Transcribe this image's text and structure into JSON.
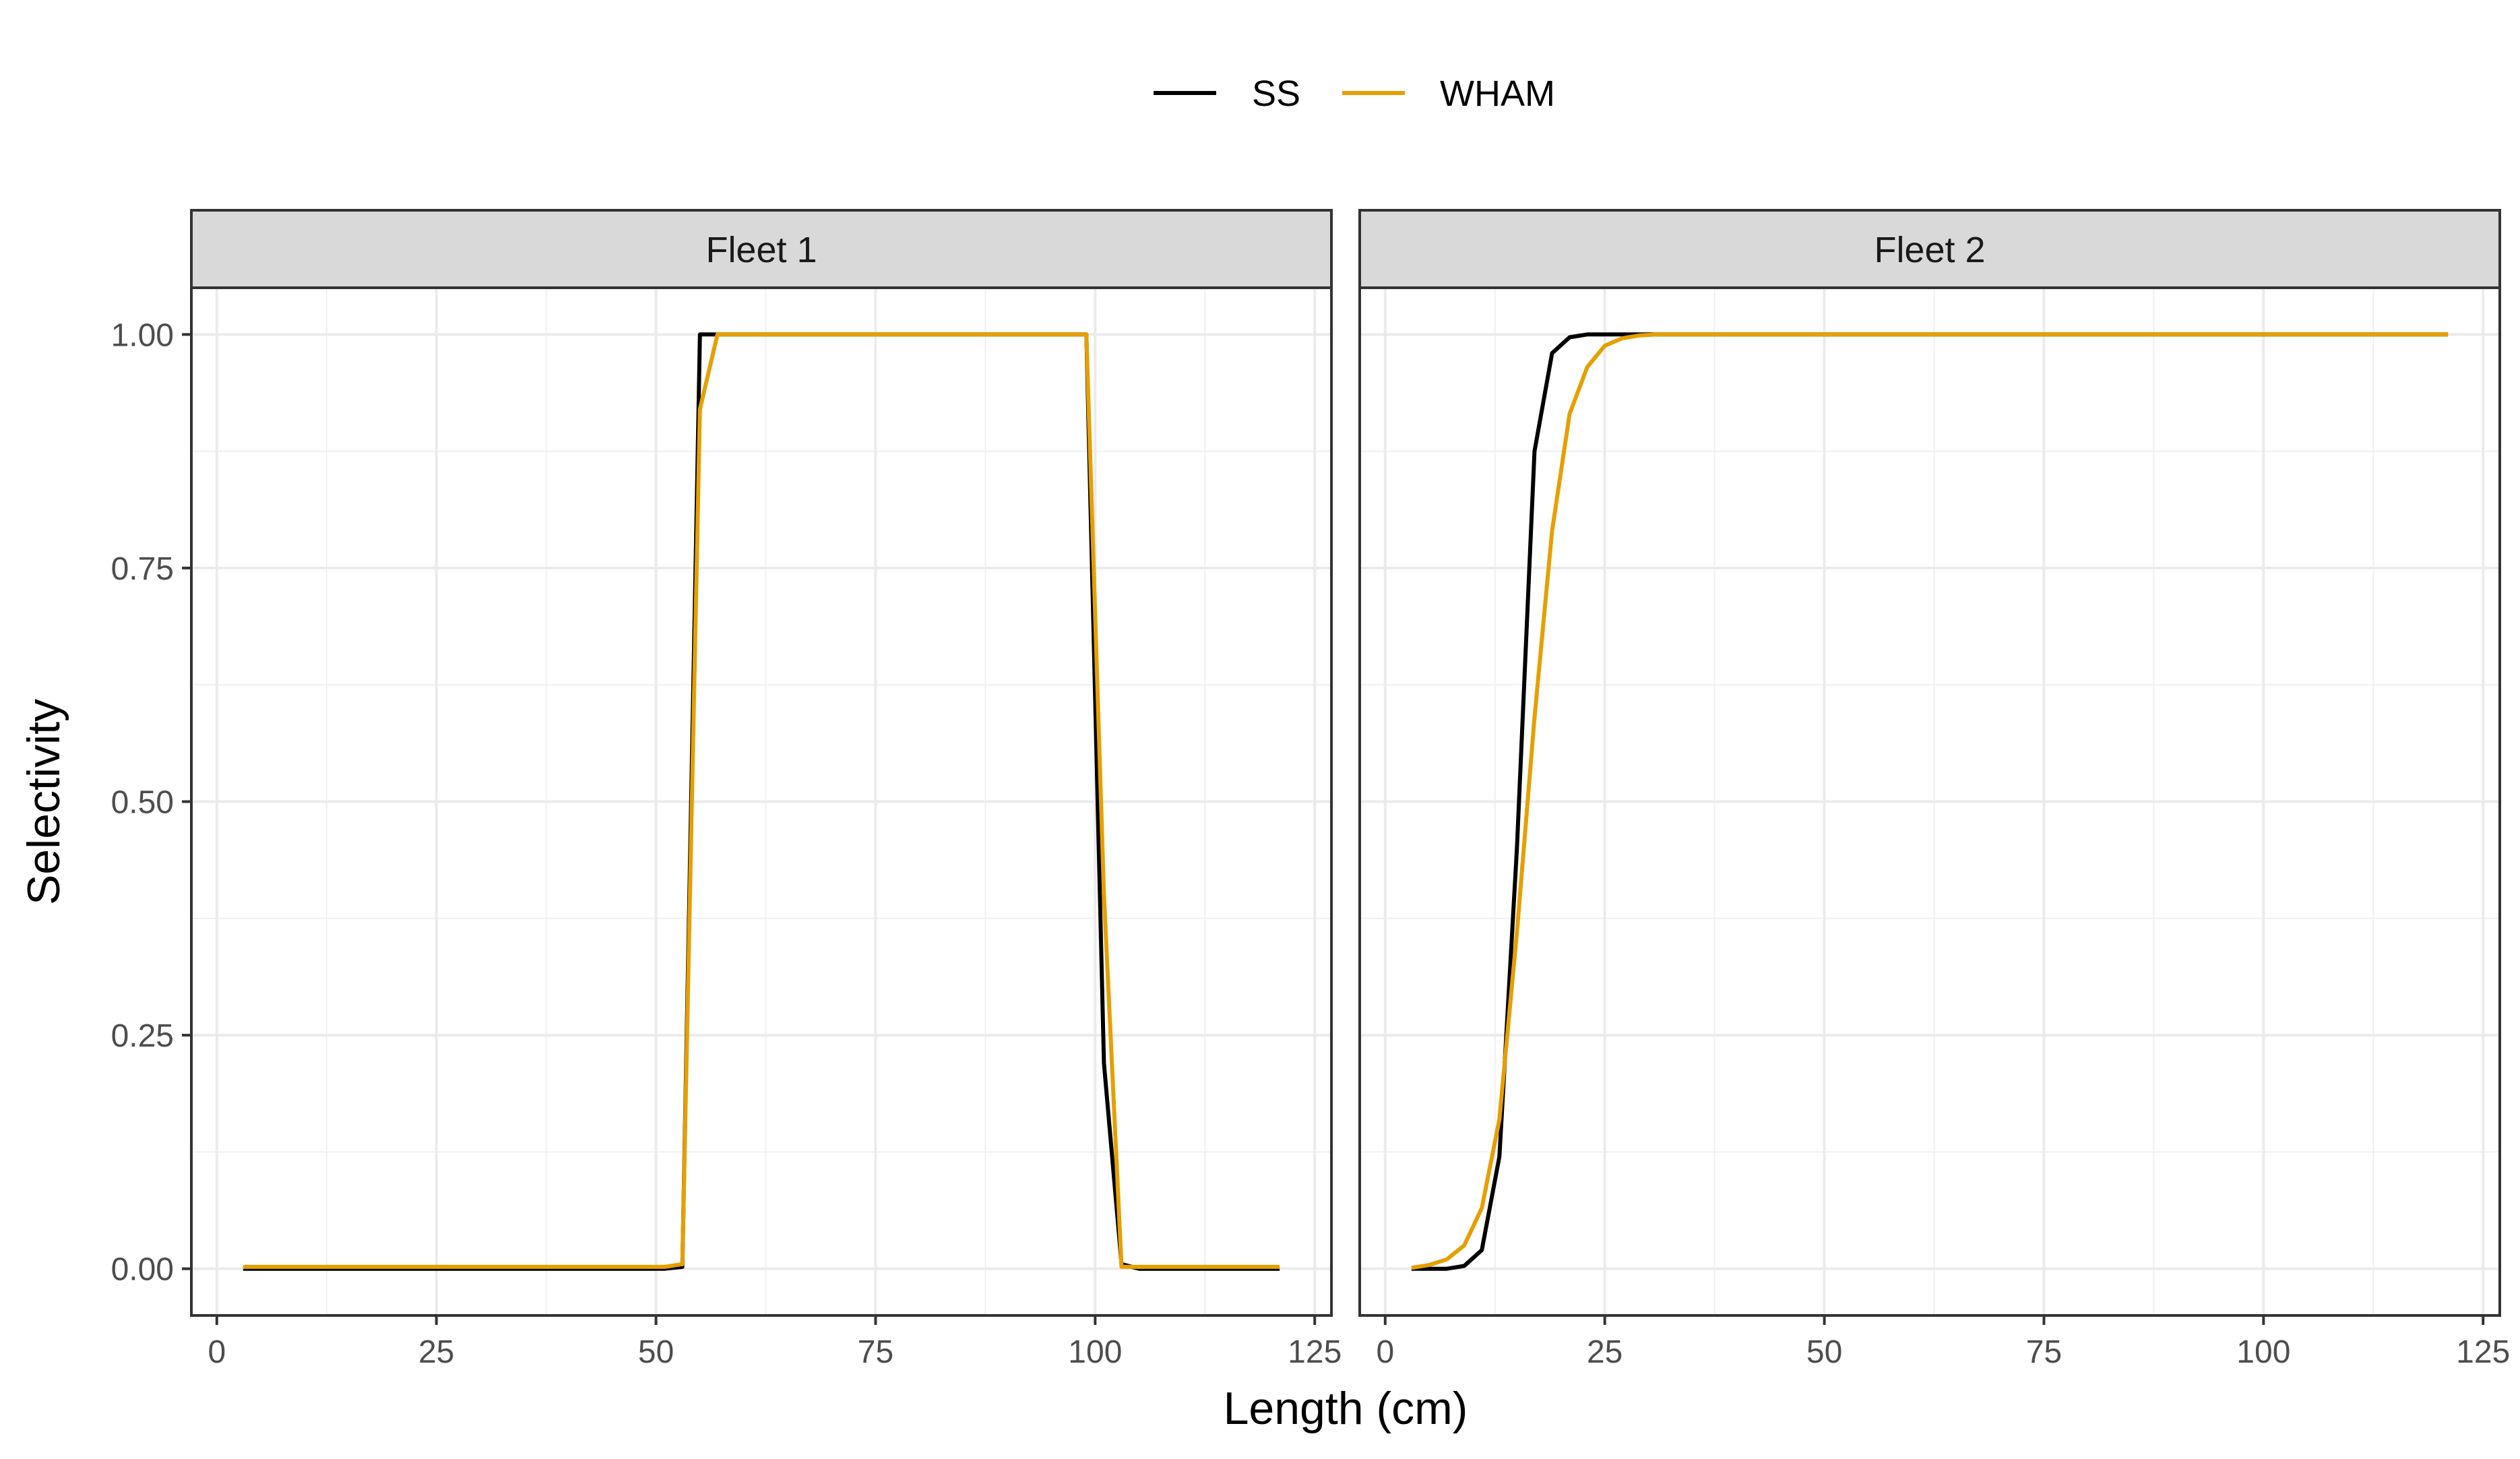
{
  "chart_data": {
    "type": "line",
    "xlabel": "Length (cm)",
    "ylabel": "Selectivity",
    "xlim": [
      -2.9,
      126.9
    ],
    "ylim": [
      -0.05,
      1.05
    ],
    "x_ticks": [
      0,
      25,
      50,
      75,
      100,
      125
    ],
    "y_ticks": [
      0.0,
      0.25,
      0.5,
      0.75,
      1.0
    ],
    "y_tick_labels": [
      "0.00",
      "0.25",
      "0.50",
      "0.75",
      "1.00"
    ],
    "x_tick_labels": [
      "0",
      "25",
      "50",
      "75",
      "100",
      "125"
    ],
    "grid": true,
    "legend_position": "top",
    "legend": [
      {
        "name": "SS",
        "color": "#000000"
      },
      {
        "name": "WHAM",
        "color": "#E69F00"
      }
    ],
    "panels": [
      {
        "title": "Fleet 1",
        "series": [
          {
            "name": "SS",
            "color": "#000000",
            "points": [
              [
                3,
                0
              ],
              [
                51,
                0
              ],
              [
                53,
                0.002
              ],
              [
                55,
                1.0
              ],
              [
                99,
                1.0
              ],
              [
                101,
                0.22
              ],
              [
                103,
                0.005
              ],
              [
                105,
                0
              ],
              [
                121,
                0
              ]
            ]
          },
          {
            "name": "WHAM",
            "color": "#E69F00",
            "points": [
              [
                3,
                0.002
              ],
              [
                51,
                0.002
              ],
              [
                53,
                0.005
              ],
              [
                55,
                0.92
              ],
              [
                57,
                1.0
              ],
              [
                99,
                1.0
              ],
              [
                101,
                0.4
              ],
              [
                103,
                0.002
              ],
              [
                105,
                0.002
              ],
              [
                121,
                0.002
              ]
            ]
          }
        ]
      },
      {
        "title": "Fleet 2",
        "series": [
          {
            "name": "SS",
            "color": "#000000",
            "points": [
              [
                3,
                0
              ],
              [
                7,
                0
              ],
              [
                9,
                0.003
              ],
              [
                11,
                0.02
              ],
              [
                13,
                0.12
              ],
              [
                15,
                0.45
              ],
              [
                17,
                0.875
              ],
              [
                19,
                0.98
              ],
              [
                21,
                0.997
              ],
              [
                23,
                1.0
              ],
              [
                121,
                1.0
              ]
            ]
          },
          {
            "name": "WHAM",
            "color": "#E69F00",
            "points": [
              [
                3,
                0.001
              ],
              [
                5,
                0.004
              ],
              [
                7,
                0.01
              ],
              [
                9,
                0.025
              ],
              [
                11,
                0.065
              ],
              [
                13,
                0.16
              ],
              [
                15,
                0.36
              ],
              [
                17,
                0.59
              ],
              [
                19,
                0.79
              ],
              [
                21,
                0.915
              ],
              [
                23,
                0.965
              ],
              [
                25,
                0.988
              ],
              [
                27,
                0.996
              ],
              [
                29,
                0.999
              ],
              [
                31,
                1.0
              ],
              [
                121,
                1.0
              ]
            ]
          }
        ]
      }
    ]
  }
}
